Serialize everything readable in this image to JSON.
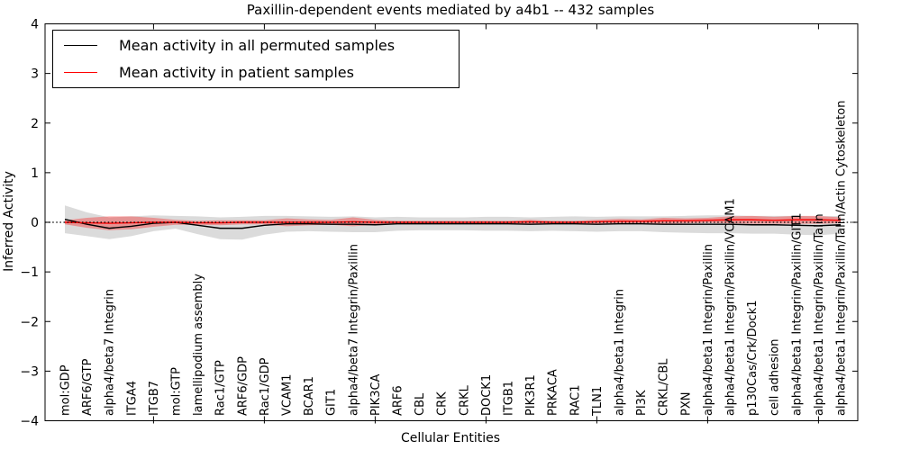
{
  "chart_data": {
    "type": "line",
    "title": "Paxillin-dependent events mediated by a4b1 -- 432 samples",
    "xlabel": "Cellular Entities",
    "ylabel": "Inferred Activity",
    "ylim": [
      -4,
      4
    ],
    "yticks": [
      -4,
      -3,
      -2,
      -1,
      0,
      1,
      2,
      3,
      4
    ],
    "yticklabels": [
      "−4",
      "−3",
      "−2",
      "−1",
      "0",
      "1",
      "2",
      "3",
      "4"
    ],
    "grid": false,
    "legend_position": "upper left",
    "x_major_tick_indices": [
      4,
      9,
      14,
      19,
      24,
      29,
      34
    ],
    "reference_line": {
      "y": 0,
      "style": "dotted",
      "color": "#000000"
    },
    "categories": [
      "mol:GDP",
      "ARF6/GTP",
      "alpha4/beta7 Integrin",
      "ITGA4",
      "ITGB7",
      "mol:GTP",
      "lamellipodium assembly",
      "Rac1/GTP",
      "ARF6/GDP",
      "Rac1/GDP",
      "VCAM1",
      "BCAR1",
      "GIT1",
      "alpha4/beta7 Integrin/Paxillin",
      "PIK3CA",
      "ARF6",
      "CBL",
      "CRK",
      "CRKL",
      "DOCK1",
      "ITGB1",
      "PIK3R1",
      "PRKACA",
      "RAC1",
      "TLN1",
      "alpha4/beta1 Integrin",
      "PI3K",
      "CRKL/CBL",
      "PXN",
      "alpha4/beta1 Integrin/Paxillin",
      "alpha4/beta1 Integrin/Paxillin/VCAM1",
      "p130Cas/Crk/Dock1",
      "cell adhesion",
      "alpha4/beta1 Integrin/Paxillin/GIT1",
      "alpha4/beta1 Integrin/Paxillin/Talin",
      "alpha4/beta1 Integrin/Paxillin/Talin/Actin Cytoskeleton"
    ],
    "series": [
      {
        "name": "Mean activity in all permuted samples",
        "color": "#000000",
        "band_color": "rgba(0,0,0,0.14)",
        "values": [
          0.06,
          -0.04,
          -0.12,
          -0.08,
          -0.02,
          0.0,
          -0.06,
          -0.12,
          -0.12,
          -0.06,
          -0.03,
          -0.03,
          -0.04,
          -0.04,
          -0.05,
          -0.03,
          -0.03,
          -0.03,
          -0.03,
          -0.03,
          -0.03,
          -0.04,
          -0.03,
          -0.03,
          -0.04,
          -0.03,
          -0.03,
          -0.04,
          -0.04,
          -0.04,
          -0.04,
          -0.05,
          -0.05,
          -0.06,
          -0.07,
          -0.05
        ],
        "band_halfwidth": [
          0.28,
          0.24,
          0.22,
          0.2,
          0.16,
          0.13,
          0.18,
          0.22,
          0.23,
          0.19,
          0.16,
          0.15,
          0.15,
          0.16,
          0.15,
          0.14,
          0.13,
          0.13,
          0.13,
          0.14,
          0.14,
          0.14,
          0.14,
          0.15,
          0.15,
          0.15,
          0.15,
          0.16,
          0.17,
          0.18,
          0.18,
          0.18,
          0.18,
          0.19,
          0.19,
          0.18
        ]
      },
      {
        "name": "Mean activity in patient samples",
        "color": "#ff0000",
        "band_color": "rgba(255,0,0,0.32)",
        "values": [
          0.0,
          -0.01,
          -0.02,
          -0.01,
          0.0,
          0.0,
          -0.01,
          -0.01,
          0.0,
          0.0,
          0.0,
          0.0,
          0.0,
          0.01,
          0.0,
          0.0,
          0.0,
          0.0,
          0.0,
          0.0,
          0.0,
          0.01,
          0.0,
          0.0,
          0.01,
          0.02,
          0.02,
          0.03,
          0.03,
          0.04,
          0.05,
          0.05,
          0.04,
          0.05,
          0.05,
          0.04
        ],
        "band_halfwidth": [
          0.04,
          0.1,
          0.14,
          0.13,
          0.09,
          0.05,
          0.04,
          0.05,
          0.04,
          0.04,
          0.08,
          0.06,
          0.05,
          0.09,
          0.05,
          0.03,
          0.03,
          0.03,
          0.03,
          0.03,
          0.03,
          0.04,
          0.03,
          0.03,
          0.04,
          0.05,
          0.04,
          0.06,
          0.05,
          0.05,
          0.07,
          0.08,
          0.07,
          0.08,
          0.08,
          0.06
        ]
      }
    ]
  }
}
